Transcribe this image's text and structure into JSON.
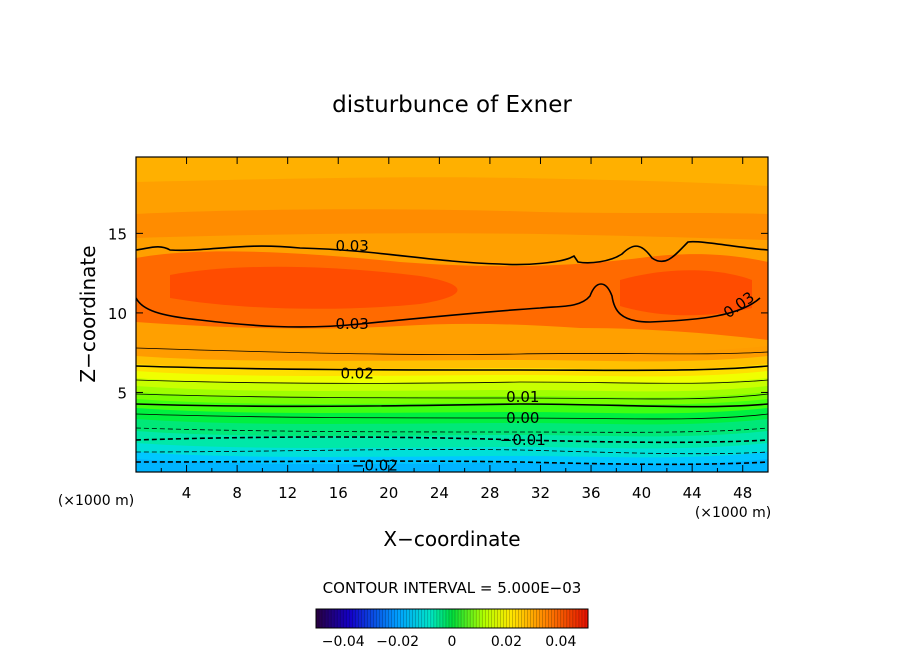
{
  "chart_data": {
    "type": "contour",
    "title": "disturbunce of Exner",
    "xlabel": "X−coordinate",
    "ylabel": "Z−coordinate",
    "x_unit": "(×1000 m)",
    "y_unit": "(×1000 m)",
    "xlim": [
      0,
      50
    ],
    "ylim": [
      0,
      19.8
    ],
    "x_ticks": [
      4,
      8,
      12,
      16,
      20,
      24,
      28,
      32,
      36,
      40,
      44,
      48
    ],
    "y_ticks": [
      5,
      10,
      15
    ],
    "contour_interval_label": "CONTOUR INTERVAL = 5.000E−03",
    "contour_labels": [
      {
        "text": "0.03",
        "x": 17.1,
        "z": 14.2
      },
      {
        "text": "0.03",
        "x": 17.1,
        "z": 9.3
      },
      {
        "text": "0.03",
        "x": 47.7,
        "z": 10.5
      },
      {
        "text": "0.02",
        "x": 17.5,
        "z": 6.2
      },
      {
        "text": "0.01",
        "x": 30.6,
        "z": 4.7
      },
      {
        "text": "0.00",
        "x": 30.6,
        "z": 3.4
      },
      {
        "text": "−0.01",
        "x": 30.6,
        "z": 2.0
      },
      {
        "text": "−0.02",
        "x": 18.9,
        "z": 0.4
      }
    ],
    "colorbar": {
      "range": [
        -0.05,
        0.05
      ],
      "tick_values": [
        -0.04,
        -0.02,
        0,
        0.02,
        0.04
      ],
      "tick_labels": [
        "−0.04",
        "−0.02",
        "0",
        "0.02",
        "0.04"
      ]
    }
  }
}
